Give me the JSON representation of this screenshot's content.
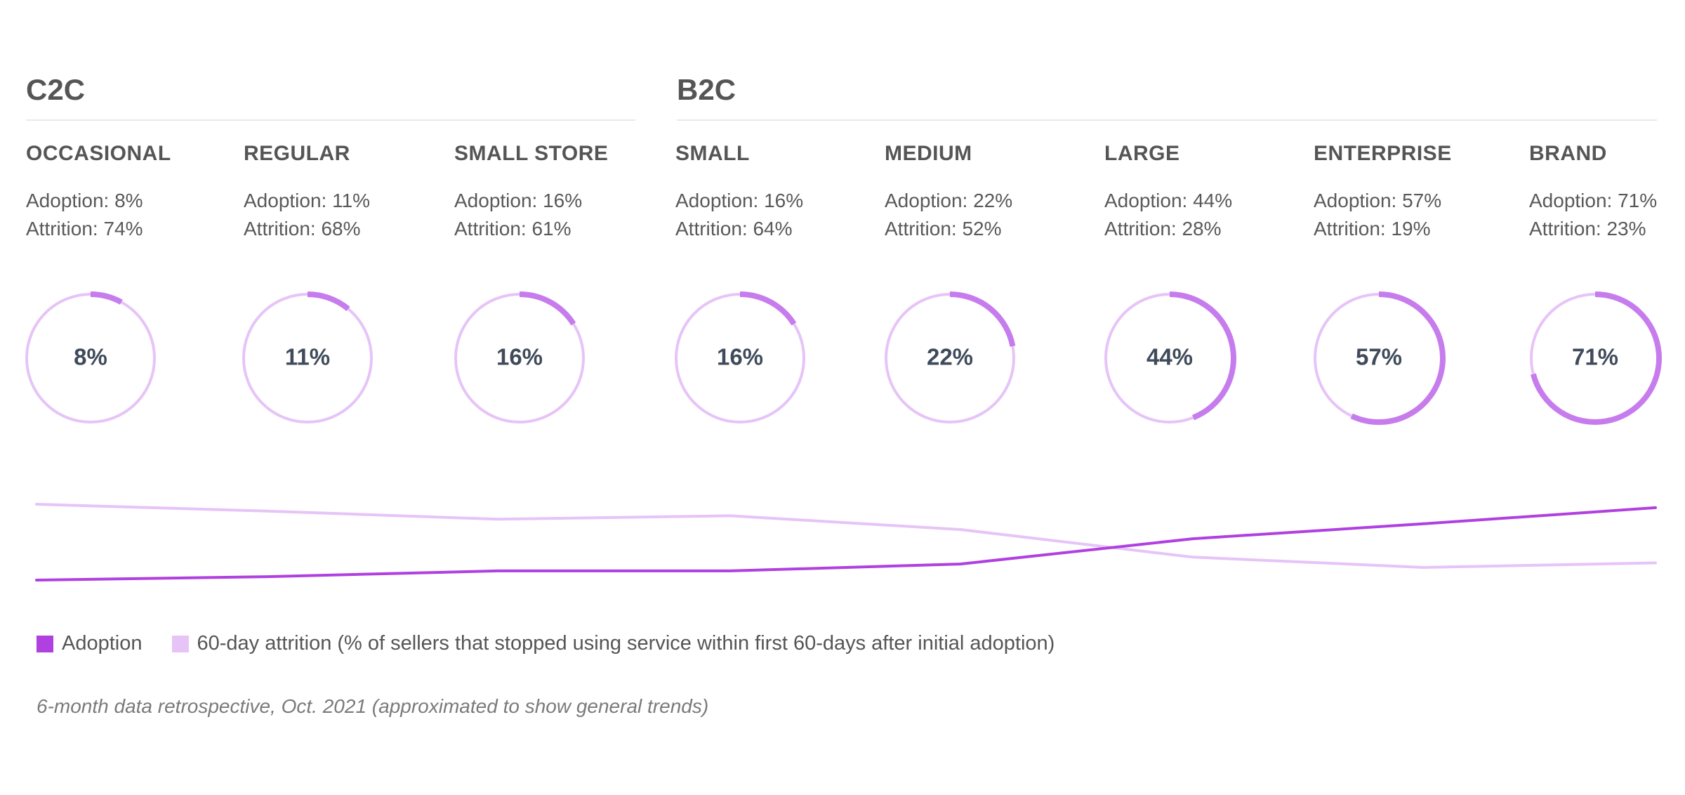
{
  "groups": [
    {
      "title": "C2C"
    },
    {
      "title": "B2C"
    }
  ],
  "segments": [
    {
      "name": "OCCASIONAL",
      "adoption_text": "Adoption: 8%",
      "attrition_text": "Attrition: 74%",
      "ring_label": "8%"
    },
    {
      "name": "REGULAR",
      "adoption_text": "Adoption: 11%",
      "attrition_text": "Attrition: 68%",
      "ring_label": "11%"
    },
    {
      "name": "SMALL STORE",
      "adoption_text": "Adoption: 16%",
      "attrition_text": "Attrition: 61%",
      "ring_label": "16%"
    },
    {
      "name": "SMALL",
      "adoption_text": "Adoption: 16%",
      "attrition_text": "Attrition: 64%",
      "ring_label": "16%"
    },
    {
      "name": "MEDIUM",
      "adoption_text": "Adoption: 22%",
      "attrition_text": "Attrition: 52%",
      "ring_label": "22%"
    },
    {
      "name": "LARGE",
      "adoption_text": "Adoption: 44%",
      "attrition_text": "Attrition: 28%",
      "ring_label": "44%"
    },
    {
      "name": "ENTERPRISE",
      "adoption_text": "Adoption: 57%",
      "attrition_text": "Attrition: 19%",
      "ring_label": "57%"
    },
    {
      "name": "BRAND",
      "adoption_text": "Adoption: 71%",
      "attrition_text": "Attrition: 23%",
      "ring_label": "71%"
    }
  ],
  "legend": {
    "adoption": "Adoption",
    "attrition": "60-day attrition (% of sellers that stopped using service within first 60-days after initial adoption)"
  },
  "footnote": "6-month data retrospective, Oct. 2021 (approximated to show general trends)",
  "colors": {
    "adoption": "#b040e0",
    "attrition": "#e6c4f7",
    "ring_track": "#e6c4f7",
    "ring_progress": "#c77ced",
    "ring_text": "#3f4a5a"
  },
  "chart_data": {
    "type": "line",
    "categories": [
      "OCCASIONAL",
      "REGULAR",
      "SMALL STORE",
      "SMALL",
      "MEDIUM",
      "LARGE",
      "ENTERPRISE",
      "BRAND"
    ],
    "series": [
      {
        "name": "Adoption",
        "values": [
          8,
          11,
          16,
          16,
          22,
          44,
          57,
          71
        ]
      },
      {
        "name": "60-day attrition (% of sellers that stopped using service within first 60-days after initial adoption)",
        "values": [
          74,
          68,
          61,
          64,
          52,
          28,
          19,
          23
        ]
      }
    ],
    "rings": {
      "type": "pie",
      "values": [
        8,
        11,
        16,
        16,
        22,
        44,
        57,
        71
      ]
    },
    "title": "",
    "xlabel": "",
    "ylabel": "",
    "legend": "bottom-left",
    "grid": false
  }
}
